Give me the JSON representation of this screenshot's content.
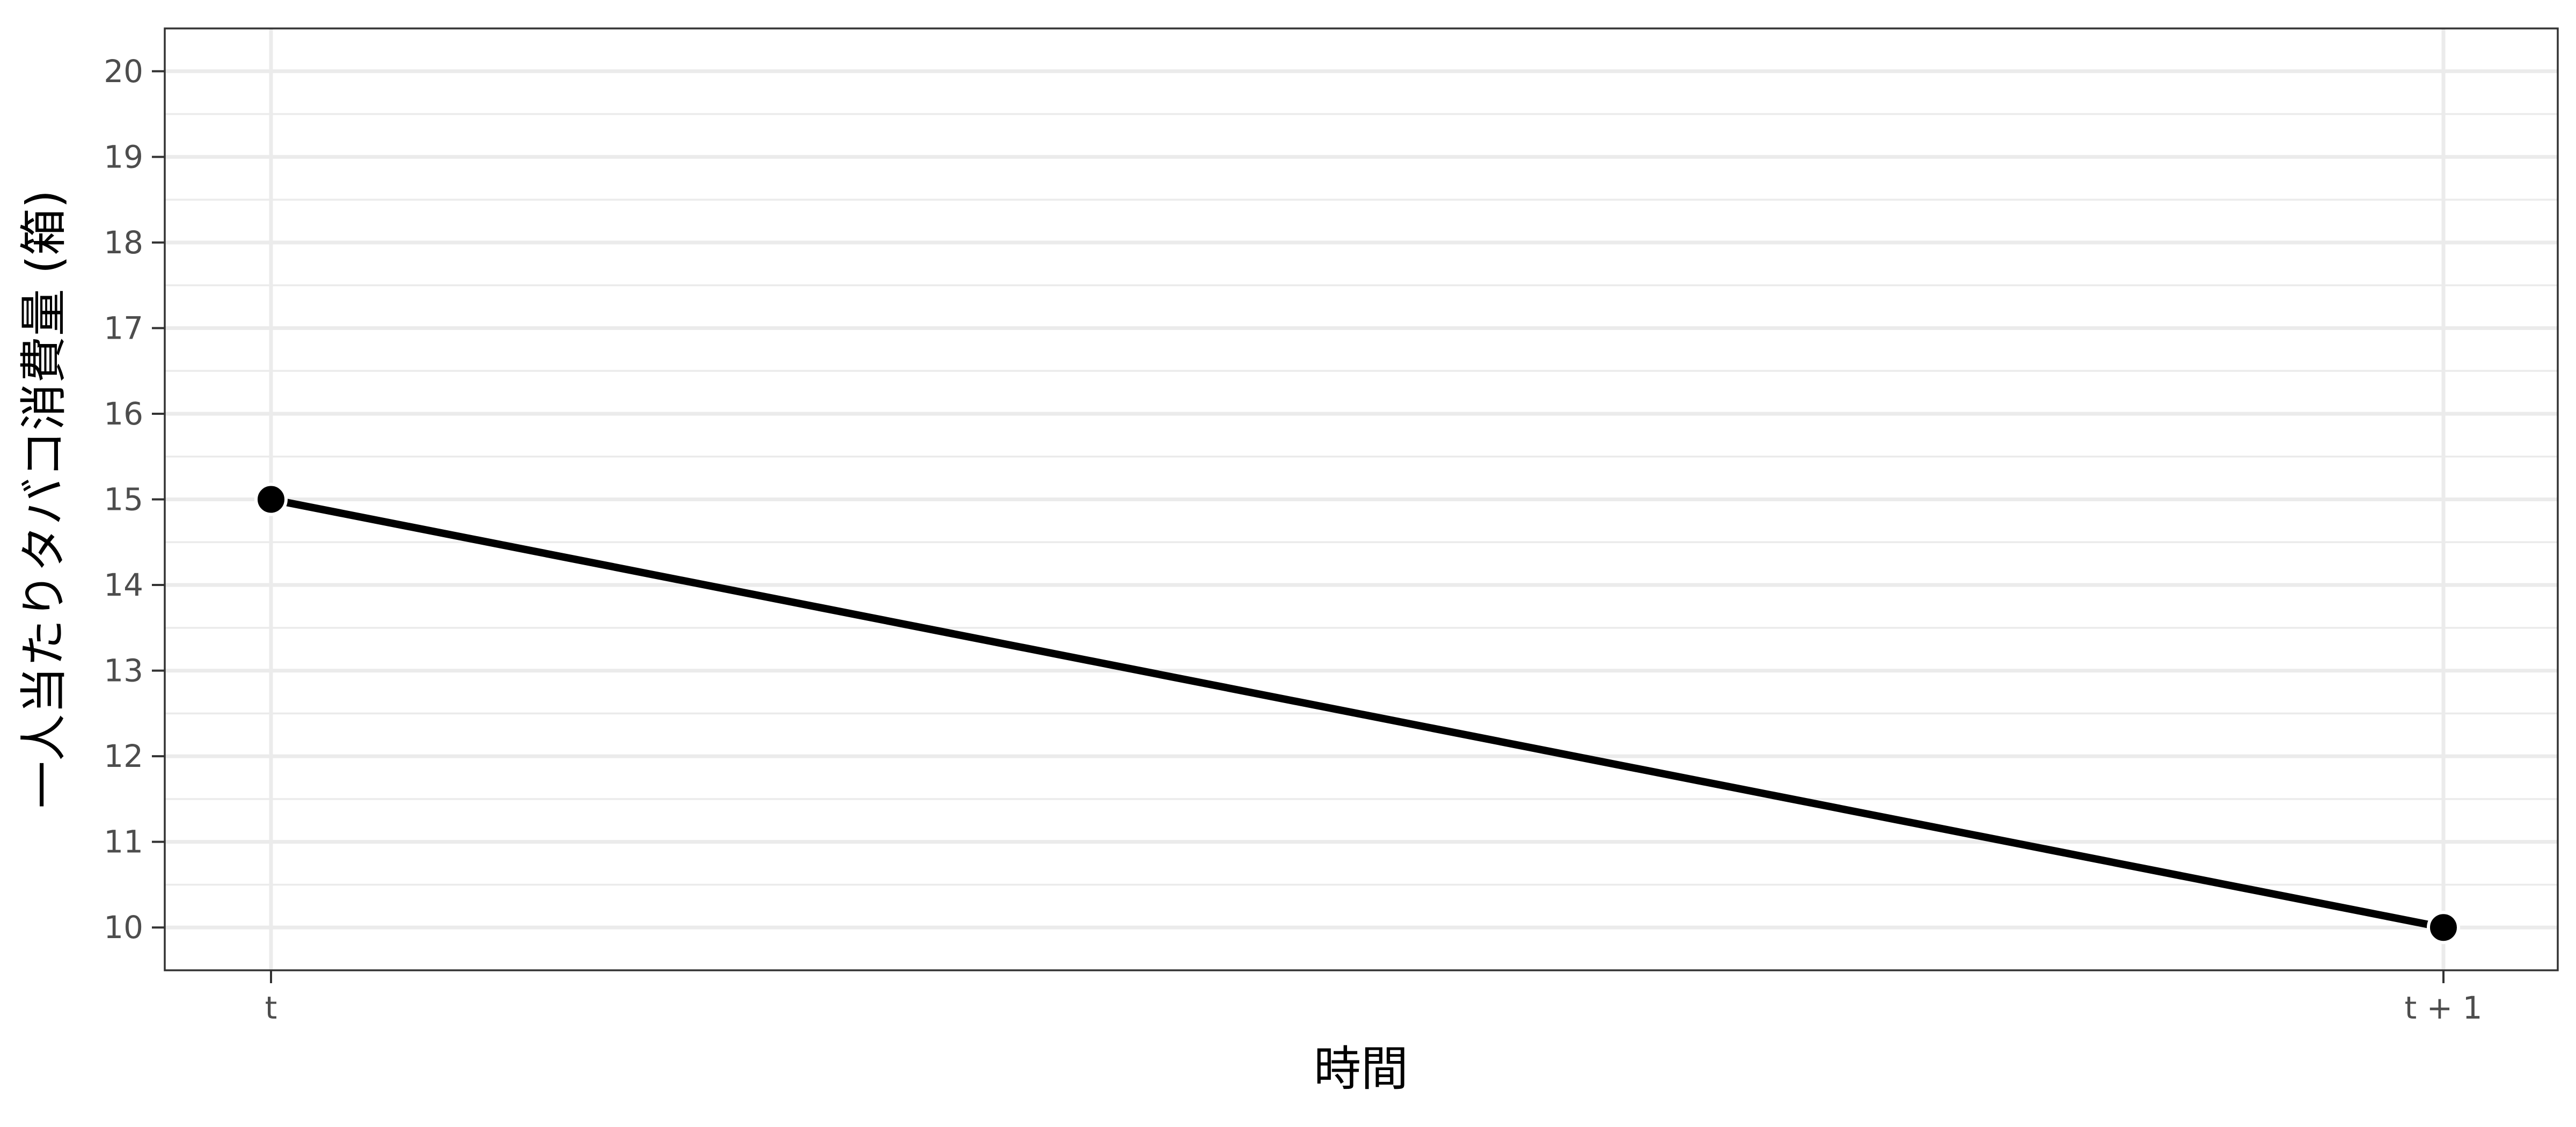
{
  "chart_data": {
    "type": "line",
    "title": "",
    "xlabel": "時間",
    "ylabel": "一人当たりタバコ消費量 (箱)",
    "categories": [
      "t",
      "t + 1"
    ],
    "series": [
      {
        "values": [
          15,
          10
        ],
        "color": "#000000"
      }
    ],
    "ylim": [
      9.5,
      20.5
    ],
    "yticks": [
      10,
      11,
      12,
      13,
      14,
      15,
      16,
      17,
      18,
      19,
      20
    ],
    "y_tick_labels": [
      "10",
      "11",
      "12",
      "13",
      "14",
      "15",
      "16",
      "17",
      "18",
      "19",
      "20"
    ],
    "grid": true,
    "legend": "none"
  }
}
